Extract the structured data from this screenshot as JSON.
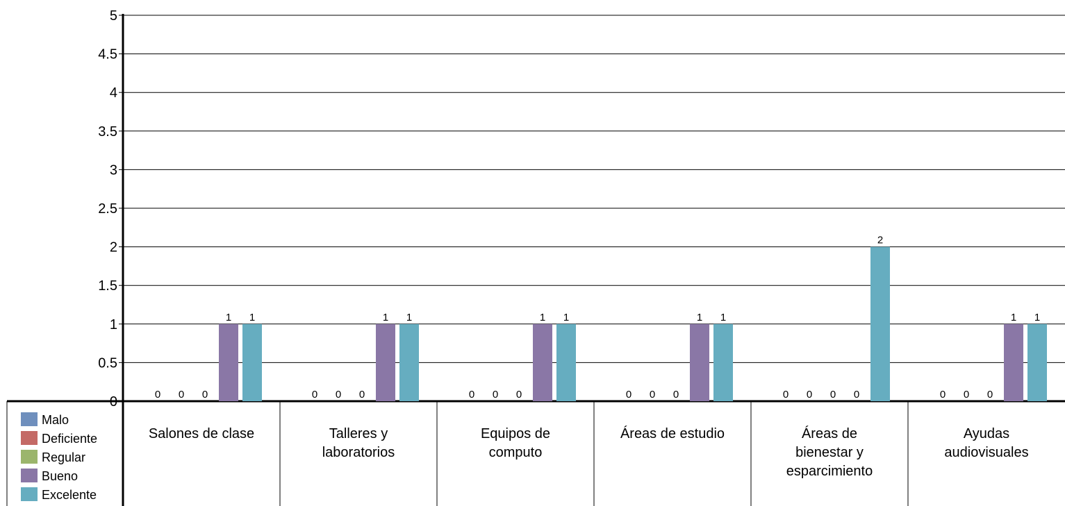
{
  "chart_data": {
    "type": "bar",
    "title": "",
    "xlabel": "",
    "ylabel": "",
    "ylim": [
      0,
      5
    ],
    "yticks": [
      "0",
      "0.5",
      "1",
      "1.5",
      "2",
      "2.5",
      "3",
      "3.5",
      "4",
      "4.5",
      "5"
    ],
    "grid": true,
    "legend_position": "bottom-left",
    "categories": [
      [
        "Salones de clase"
      ],
      [
        "Talleres y",
        "laboratorios"
      ],
      [
        "Equipos de",
        "computo"
      ],
      [
        "Áreas de estudio"
      ],
      [
        "Áreas de",
        "bienestar y",
        "esparcimiento"
      ],
      [
        "Ayudas",
        "audiovisuales"
      ]
    ],
    "series": [
      {
        "name": "Malo",
        "color": "#6f8fbd",
        "values": [
          0,
          0,
          0,
          0,
          0,
          0
        ]
      },
      {
        "name": "Deficiente",
        "color": "#c46a66",
        "values": [
          0,
          0,
          0,
          0,
          0,
          0
        ]
      },
      {
        "name": "Regular",
        "color": "#9bb56c",
        "values": [
          0,
          0,
          0,
          0,
          0,
          0
        ]
      },
      {
        "name": "Bueno",
        "color": "#8a77a6",
        "values": [
          1,
          1,
          1,
          1,
          0,
          1
        ]
      },
      {
        "name": "Excelente",
        "color": "#66adc0",
        "values": [
          1,
          1,
          1,
          1,
          2,
          1
        ]
      }
    ]
  }
}
